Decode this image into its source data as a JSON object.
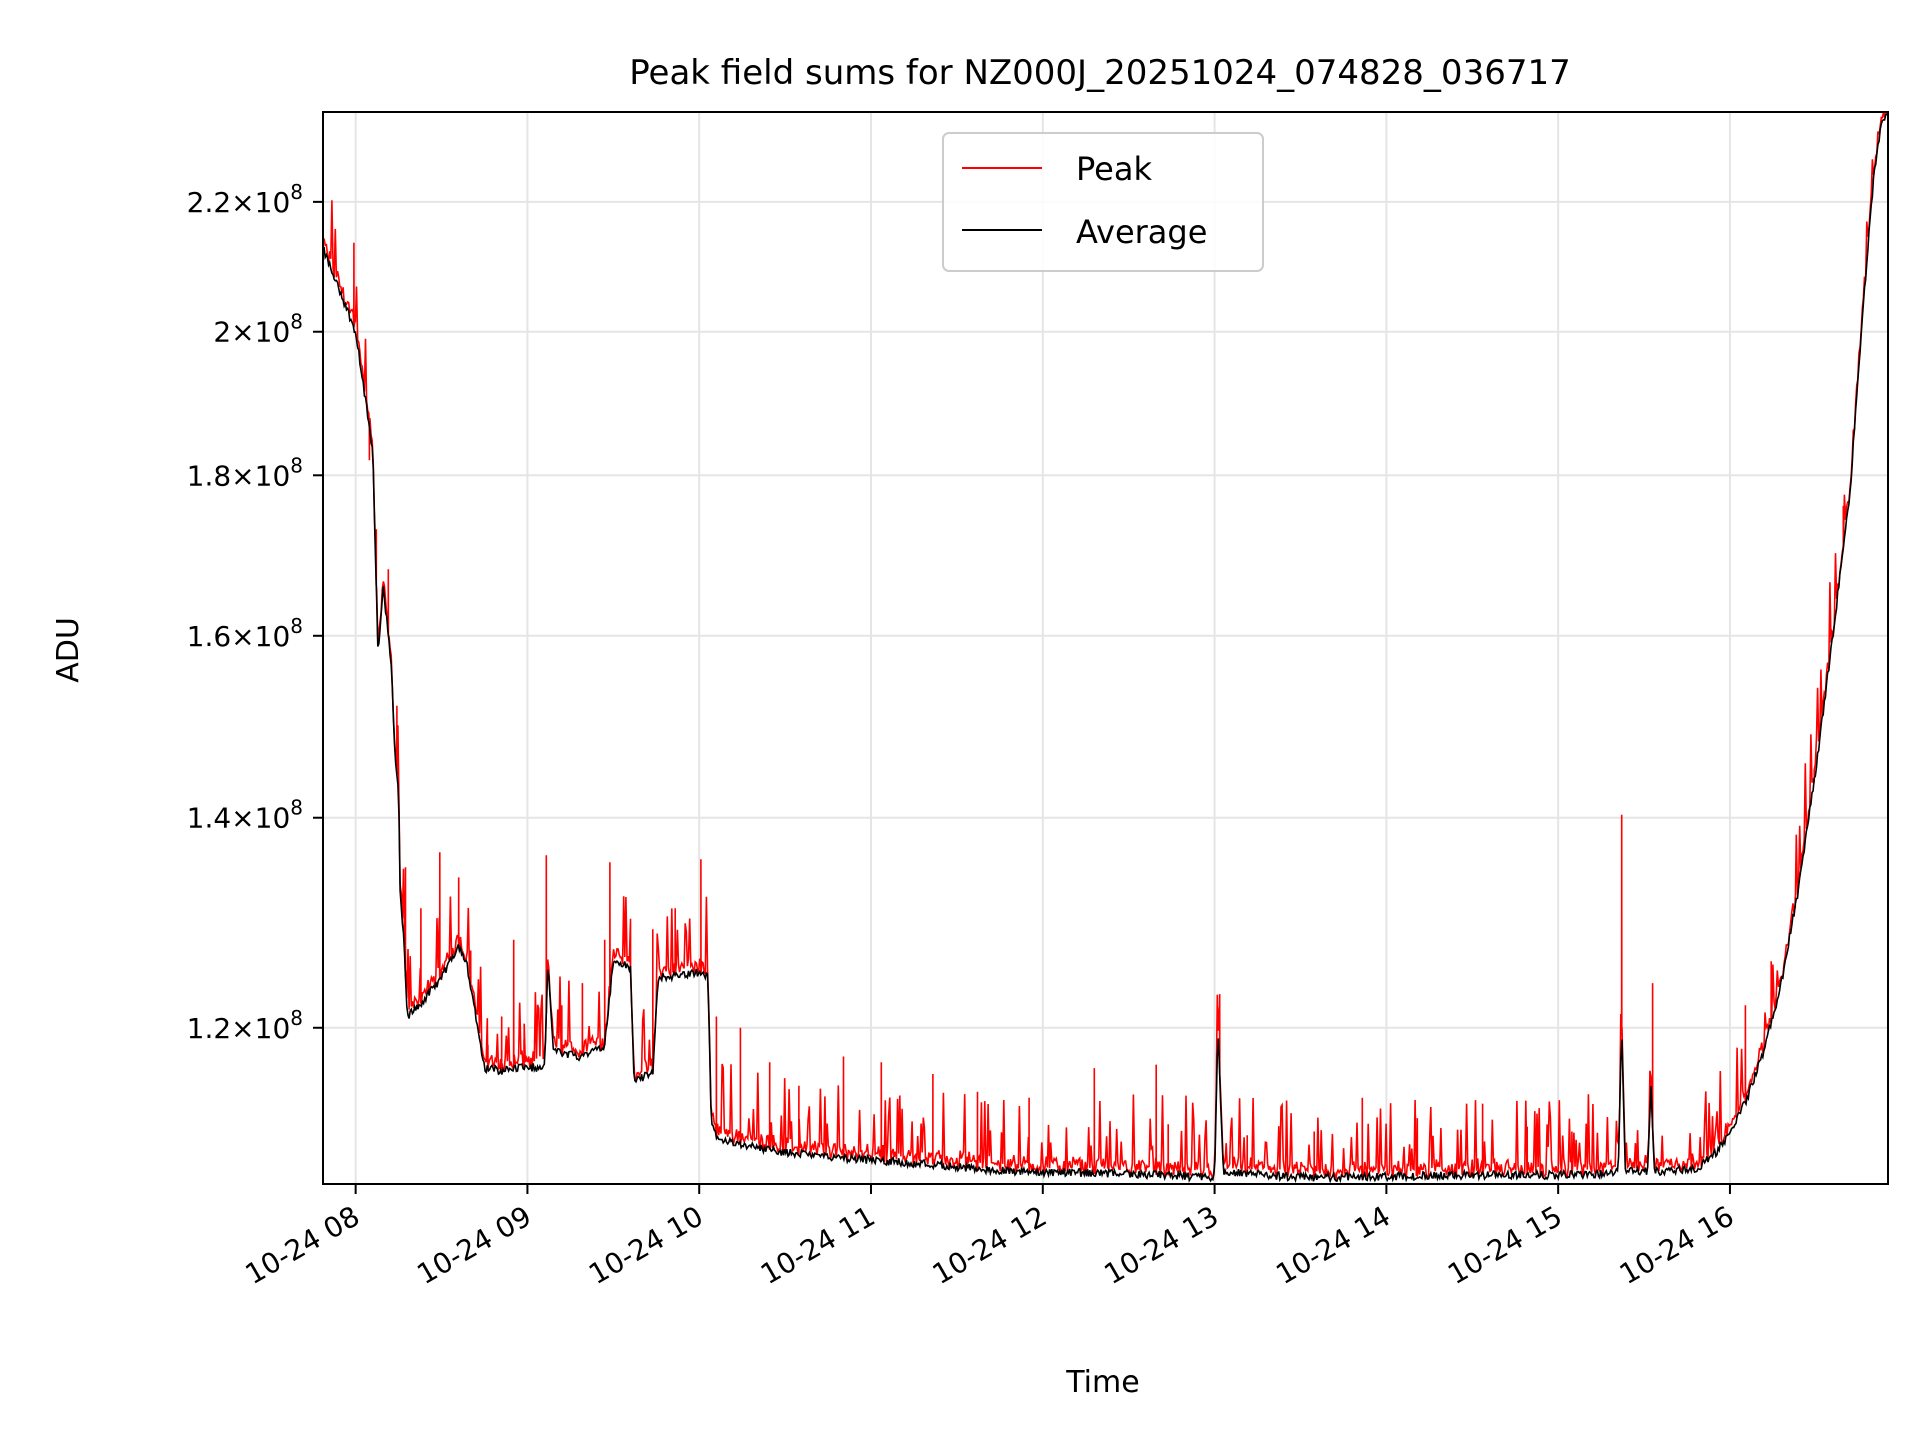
{
  "chart_data": {
    "type": "line",
    "title": "Peak field sums for NZ000J_20251024_074828_036717",
    "xlabel": "Time",
    "ylabel": "ADU",
    "grid": true,
    "yscale": "log",
    "xlim": [
      7.81,
      16.92
    ],
    "ylim": [
      107000000,
      235000000
    ],
    "x_ticks": [
      {
        "value": 8,
        "label": "10-24 08"
      },
      {
        "value": 9,
        "label": "10-24 09"
      },
      {
        "value": 10,
        "label": "10-24 10"
      },
      {
        "value": 11,
        "label": "10-24 11"
      },
      {
        "value": 12,
        "label": "10-24 12"
      },
      {
        "value": 13,
        "label": "10-24 13"
      },
      {
        "value": 14,
        "label": "10-24 14"
      },
      {
        "value": 15,
        "label": "10-24 15"
      },
      {
        "value": 16,
        "label": "10-24 16"
      }
    ],
    "y_ticks": [
      {
        "value": 120000000,
        "mant": "1.2",
        "exp": "8"
      },
      {
        "value": 140000000,
        "mant": "1.4",
        "exp": "8"
      },
      {
        "value": 160000000,
        "mant": "1.6",
        "exp": "8"
      },
      {
        "value": 180000000,
        "mant": "1.8",
        "exp": "8"
      },
      {
        "value": 200000000,
        "mant": "2",
        "exp": "8"
      },
      {
        "value": 220000000,
        "mant": "2.2",
        "exp": "8"
      }
    ],
    "legend": {
      "position": "top-center"
    },
    "series": [
      {
        "name": "Peak",
        "color": "#ff0000",
        "spikes": [
          [
            7.99,
            213500000
          ],
          [
            8.08,
            182000000
          ],
          [
            8.12,
            173000000
          ],
          [
            8.19,
            168000000
          ],
          [
            8.24,
            152000000
          ],
          [
            8.29,
            135000000
          ],
          [
            8.38,
            131000000
          ],
          [
            8.49,
            136500000
          ],
          [
            8.6,
            134000000
          ],
          [
            8.67,
            127000000
          ],
          [
            8.77,
            118500000
          ],
          [
            8.85,
            121000000
          ],
          [
            8.92,
            128000000
          ],
          [
            8.98,
            119000000
          ],
          [
            9.11,
            136200000
          ],
          [
            9.2,
            122000000
          ],
          [
            9.32,
            124000000
          ],
          [
            9.45,
            128000000
          ],
          [
            9.48,
            135500000
          ],
          [
            9.6,
            130000000
          ],
          [
            9.73,
            129000000
          ],
          [
            9.86,
            131000000
          ],
          [
            10.01,
            135800000
          ],
          [
            10.1,
            121000000
          ],
          [
            10.24,
            120000000
          ],
          [
            10.41,
            117000000
          ],
          [
            10.58,
            115000000
          ],
          [
            10.84,
            117500000
          ],
          [
            11.06,
            117000000
          ],
          [
            11.36,
            116000000
          ],
          [
            11.62,
            114500000
          ],
          [
            11.92,
            114000000
          ],
          [
            12.3,
            116500000
          ],
          [
            12.66,
            116800000
          ],
          [
            12.73,
            111800000
          ],
          [
            13.03,
            123000000
          ],
          [
            13.19,
            110900000
          ],
          [
            13.58,
            111200000
          ],
          [
            13.86,
            114000000
          ],
          [
            14.18,
            112300000
          ],
          [
            14.56,
            113500000
          ],
          [
            14.82,
            111600000
          ],
          [
            15.08,
            111200000
          ],
          [
            15.37,
            140300000
          ],
          [
            15.55,
            124000000
          ],
          [
            16.09,
            122000000
          ],
          [
            16.24,
            126000000
          ],
          [
            16.38,
            131000000
          ],
          [
            16.49,
            144000000
          ],
          [
            16.66,
            176000000
          ]
        ]
      },
      {
        "name": "Average",
        "color": "#000000",
        "knots": [
          [
            7.81,
            212500000
          ],
          [
            8.0,
            200000000
          ],
          [
            8.1,
            183000000
          ],
          [
            8.115,
            170000000
          ],
          [
            8.13,
            158000000
          ],
          [
            8.16,
            166000000
          ],
          [
            8.21,
            156000000
          ],
          [
            8.23,
            146000000
          ],
          [
            8.25,
            143000000
          ],
          [
            8.26,
            132000000
          ],
          [
            8.28,
            128000000
          ],
          [
            8.3,
            121000000
          ],
          [
            8.4,
            122500000
          ],
          [
            8.5,
            124500000
          ],
          [
            8.6,
            127500000
          ],
          [
            8.65,
            125500000
          ],
          [
            8.7,
            121000000
          ],
          [
            8.75,
            116500000
          ],
          [
            8.85,
            116300000
          ],
          [
            8.98,
            116600000
          ],
          [
            9.1,
            116500000
          ],
          [
            9.12,
            126000000
          ],
          [
            9.15,
            118000000
          ],
          [
            9.3,
            117500000
          ],
          [
            9.45,
            118500000
          ],
          [
            9.5,
            126000000
          ],
          [
            9.6,
            125500000
          ],
          [
            9.62,
            115500000
          ],
          [
            9.73,
            116000000
          ],
          [
            9.76,
            124500000
          ],
          [
            10.0,
            125000000
          ],
          [
            10.05,
            124500000
          ],
          [
            10.07,
            112000000
          ],
          [
            10.1,
            110700000
          ],
          [
            10.3,
            110000000
          ],
          [
            10.5,
            109500000
          ],
          [
            10.7,
            109200000
          ],
          [
            11.0,
            108900000
          ],
          [
            11.4,
            108500000
          ],
          [
            11.8,
            108000000
          ],
          [
            12.2,
            107900000
          ],
          [
            12.7,
            107700000
          ],
          [
            13.0,
            107500000
          ],
          [
            13.02,
            120000000
          ],
          [
            13.05,
            108000000
          ],
          [
            13.5,
            107500000
          ],
          [
            14.0,
            107600000
          ],
          [
            14.5,
            107700000
          ],
          [
            15.0,
            107700000
          ],
          [
            15.3,
            107800000
          ],
          [
            15.35,
            108000000
          ],
          [
            15.37,
            120000000
          ],
          [
            15.39,
            108000000
          ],
          [
            15.52,
            108000000
          ],
          [
            15.54,
            115000000
          ],
          [
            15.56,
            108000000
          ],
          [
            15.8,
            108200000
          ],
          [
            15.9,
            109200000
          ],
          [
            16.0,
            111000000
          ],
          [
            16.1,
            114000000
          ],
          [
            16.2,
            118000000
          ],
          [
            16.3,
            124000000
          ],
          [
            16.4,
            133000000
          ],
          [
            16.5,
            145000000
          ],
          [
            16.6,
            160000000
          ],
          [
            16.7,
            178000000
          ],
          [
            16.78,
            205000000
          ],
          [
            16.84,
            225000000
          ],
          [
            16.88,
            233000000
          ],
          [
            16.92,
            235000000
          ]
        ]
      }
    ]
  }
}
